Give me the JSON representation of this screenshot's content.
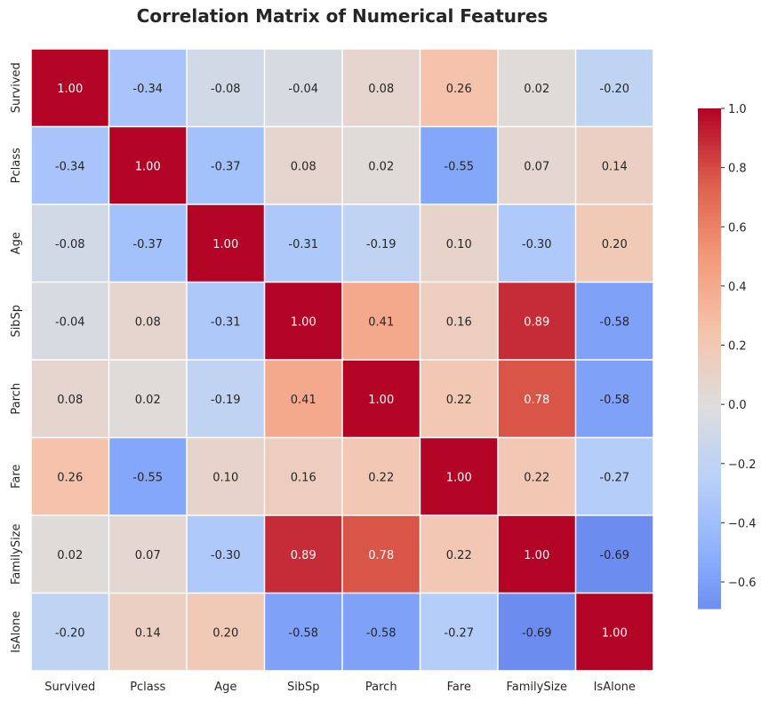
{
  "chart_data": {
    "type": "heatmap",
    "title": "Correlation Matrix of Numerical Features",
    "labels": [
      "Survived",
      "Pclass",
      "Age",
      "SibSp",
      "Parch",
      "Fare",
      "FamilySize",
      "IsAlone"
    ],
    "values": [
      [
        1.0,
        -0.34,
        -0.08,
        -0.04,
        0.08,
        0.26,
        0.02,
        -0.2
      ],
      [
        -0.34,
        1.0,
        -0.37,
        0.08,
        0.02,
        -0.55,
        0.07,
        0.14
      ],
      [
        -0.08,
        -0.37,
        1.0,
        -0.31,
        -0.19,
        0.1,
        -0.3,
        0.2
      ],
      [
        -0.04,
        0.08,
        -0.31,
        1.0,
        0.41,
        0.16,
        0.89,
        -0.58
      ],
      [
        0.08,
        0.02,
        -0.19,
        0.41,
        1.0,
        0.22,
        0.78,
        -0.58
      ],
      [
        0.26,
        -0.55,
        0.1,
        0.16,
        0.22,
        1.0,
        0.22,
        -0.27
      ],
      [
        0.02,
        0.07,
        -0.3,
        0.89,
        0.78,
        0.22,
        1.0,
        -0.69
      ],
      [
        -0.2,
        0.14,
        0.2,
        -0.58,
        -0.58,
        -0.27,
        -0.69,
        1.0
      ]
    ],
    "colorbar": {
      "colormap": "coolwarm",
      "range": [
        -0.69,
        1.0
      ],
      "ticks": [
        -0.6,
        -0.4,
        -0.2,
        0.0,
        0.2,
        0.4,
        0.6,
        0.8,
        1.0
      ],
      "tick_labels": [
        "−0.6",
        "−0.4",
        "−0.2",
        "0.0",
        "0.2",
        "0.4",
        "0.6",
        "0.8",
        "1.0"
      ]
    },
    "annotation_format": "0.00",
    "cell_border_color": "#ffffff",
    "text_color_dark": "#262626",
    "text_color_light": "#ffffff"
  }
}
